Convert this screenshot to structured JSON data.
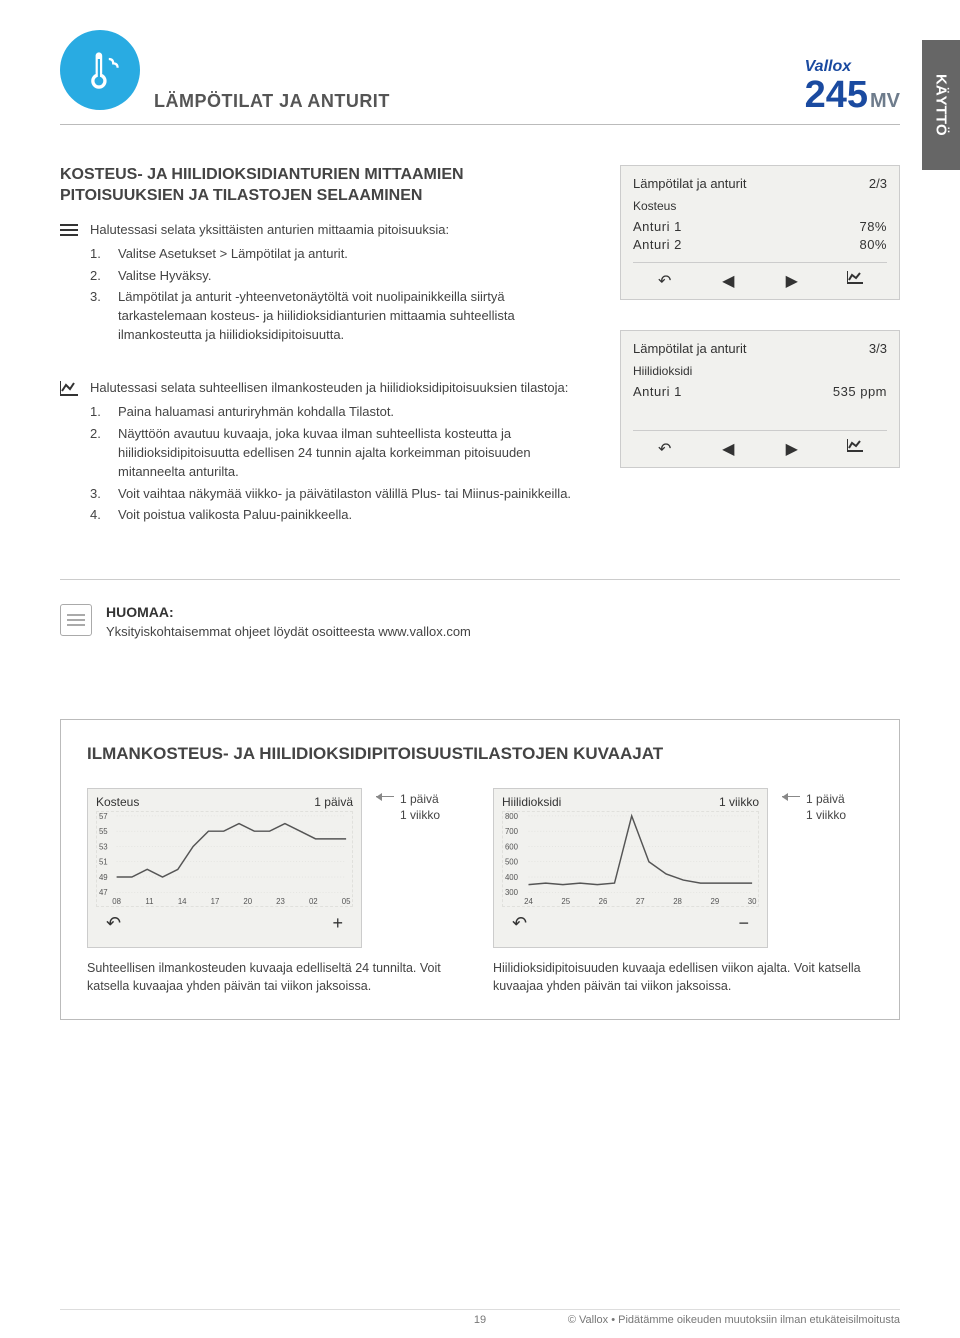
{
  "sideTab": "KÄYTTÖ",
  "header": {
    "sectionTitle": "LÄMPÖTILAT JA ANTURIT",
    "brandName": "Vallox",
    "modelNumber": "245",
    "modelSuffix": "MV"
  },
  "sec1": {
    "heading": "KOSTEUS- JA HIILIDIOKSIDIANTURIEN MITTAAMIEN PITOISUUKSIEN JA TILASTOJEN SELAAMINEN",
    "intro": "Halutessasi selata yksittäisten anturien mittaamia pitoisuuksia:",
    "items": [
      "Valitse Asetukset > Lämpötilat ja anturit.",
      "Valitse Hyväksy.",
      "Lämpötilat ja anturit -yhteenvetonäytöltä voit nuolipainikkeilla siirtyä tarkastelemaan kosteus- ja hiilidioksidianturien mittaamia suhteellista ilmankosteutta ja hiilidioksidipitoisuutta."
    ]
  },
  "sec2": {
    "intro": "Halutessasi selata suhteellisen ilmankosteuden ja hiilidioksidipitoisuuksien tilastoja:",
    "items": [
      "Paina haluamasi anturiryhmän kohdalla Tilastot.",
      "Näyttöön avautuu kuvaaja, joka kuvaa ilman suhteellista kosteutta ja hiilidioksidipitoisuutta edellisen 24 tunnin ajalta korkeimman pitoisuuden mitanneelta anturilta.",
      "Voit vaihtaa näkymää viikko- ja päivätilaston välillä Plus- tai Miinus-painikkeilla.",
      "Voit poistua valikosta Paluu-painikkeella."
    ]
  },
  "panel1": {
    "title": "Lämpötilat ja anturit",
    "page": "2/3",
    "sub": "Kosteus",
    "rows": [
      {
        "label": "Anturi 1",
        "value": "78%"
      },
      {
        "label": "Anturi 2",
        "value": "80%"
      }
    ]
  },
  "panel2": {
    "title": "Lämpötilat ja anturit",
    "page": "3/3",
    "sub": "Hiilidioksidi",
    "rows": [
      {
        "label": "Anturi 1",
        "value": "535 ppm"
      }
    ]
  },
  "note": {
    "title": "HUOMAA:",
    "text": "Yksityiskohtaisemmat ohjeet löydät osoitteesta www.vallox.com"
  },
  "chartsSection": {
    "title": "ILMANKOSTEUS- JA HIILIDIOKSIDIPITOISUUSTILASTOJEN KUVAAJAT",
    "periodLabel1": "1 päivä",
    "periodLabel2": "1 viikko"
  },
  "chartA": {
    "type": "line",
    "title": "Kosteus",
    "period": "1 päivä",
    "yTicks": [
      "57",
      "55",
      "53",
      "51",
      "49",
      "47"
    ],
    "xTicks": [
      "08",
      "11",
      "14",
      "17",
      "20",
      "23",
      "02",
      "05"
    ],
    "values": [
      49,
      49,
      50,
      49,
      50,
      53,
      55,
      55,
      56,
      55,
      55,
      56,
      55,
      54,
      54,
      54
    ],
    "ylim": [
      47,
      57
    ],
    "line_color": "#555555",
    "grid_color": "#d8d8d4",
    "background_color": "#f1f1ee",
    "navLeft": "↶",
    "navRight": "+",
    "caption": "Suhteellisen ilmankosteuden kuvaaja edelliseltä 24 tunnilta. Voit katsella kuvaajaa yhden päivän tai viikon jaksoissa."
  },
  "chartB": {
    "type": "line",
    "title": "Hiilidioksidi",
    "period": "1 viikko",
    "yTicks": [
      "800",
      "700",
      "600",
      "500",
      "400",
      "300"
    ],
    "xTicks": [
      "24",
      "25",
      "26",
      "27",
      "28",
      "29",
      "30"
    ],
    "values": [
      350,
      360,
      350,
      360,
      350,
      360,
      800,
      500,
      420,
      380,
      360,
      360,
      360,
      360
    ],
    "ylim": [
      300,
      800
    ],
    "line_color": "#555555",
    "grid_color": "#d8d8d4",
    "background_color": "#f1f1ee",
    "navLeft": "↶",
    "navRight": "−",
    "caption": "Hiilidioksidipitoisuuden kuvaaja edellisen viikon ajalta. Voit katsella kuvaajaa yhden päivän tai viikon jaksoissa."
  },
  "footer": {
    "pageNum": "19",
    "copyright": "© Vallox • Pidätämme oikeuden muutoksiin ilman etukäteisilmoitusta"
  }
}
